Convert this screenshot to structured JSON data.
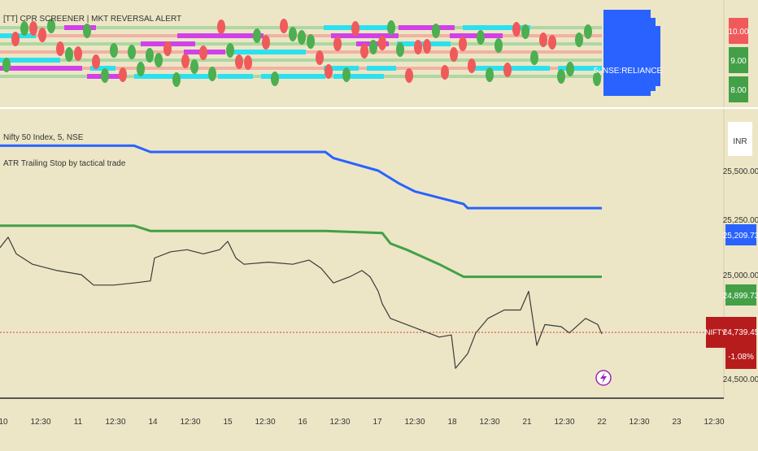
{
  "upper_pane": {
    "indicator_title": "[TT] CPR SCREENER | MKT REVERSAL ALERT",
    "badge_label": "5: NSE:RELIANCE",
    "axis_labels": [
      "10.00",
      "9.00",
      "8.00"
    ],
    "colors": {
      "red": "#f05a5a",
      "green": "#4caf50",
      "cyan": "#2de0ef",
      "magenta": "#d041e8",
      "badge": "#2962ff"
    }
  },
  "main_pane": {
    "symbol_title": "Nifty 50 Index, 5, NSE",
    "indicator_title": "ATR Trailing Stop by tactical trade",
    "currency_label": "INR",
    "price_labels": [
      "25,500.00",
      "25,000.00",
      "24,500.00"
    ],
    "partial_label": "25,250.00",
    "blue_tag": "25,209.73",
    "green_tag": "24,899.73",
    "symbol_tag": "NIFTY",
    "price_tag": "24,739.45",
    "change_tag": "-1.08%",
    "flash_icon": "lightning-bolt-icon",
    "colors": {
      "blue": "#2962ff",
      "green": "#43a047",
      "price": "#3a3a3a",
      "tag_red": "#b71c1c"
    }
  },
  "time_axis": {
    "labels": [
      "10",
      "12:30",
      "11",
      "12:30",
      "14",
      "12:30",
      "15",
      "12:30",
      "16",
      "12:30",
      "17",
      "12:30",
      "18",
      "12:30",
      "21",
      "12:30",
      "22",
      "12:30",
      "23",
      "12:30"
    ]
  },
  "chart_data": {
    "type": "line",
    "title": "Nifty 50 Index, 5, NSE",
    "x": [
      "10",
      "11",
      "14",
      "15",
      "16",
      "17",
      "18",
      "21",
      "22"
    ],
    "ylim": [
      24400,
      25700
    ],
    "series": [
      {
        "name": "ATR Trailing Stop by tactical trade",
        "color": "#2962ff",
        "points": [
          [
            0,
            25620
          ],
          [
            165,
            25620
          ],
          [
            185,
            25590
          ],
          [
            400,
            25590
          ],
          [
            410,
            25560
          ],
          [
            465,
            25500
          ],
          [
            490,
            25440
          ],
          [
            510,
            25400
          ],
          [
            540,
            25370
          ],
          [
            570,
            25340
          ],
          [
            575,
            25320
          ],
          [
            740,
            25320
          ]
        ]
      },
      {
        "name": "ATR Trailing Stop by tactical trade",
        "color": "#43a047",
        "points": [
          [
            0,
            25235
          ],
          [
            165,
            25235
          ],
          [
            185,
            25210
          ],
          [
            400,
            25210
          ],
          [
            470,
            25200
          ],
          [
            480,
            25150
          ],
          [
            500,
            25120
          ],
          [
            540,
            25050
          ],
          [
            570,
            24990
          ],
          [
            740,
            24990
          ]
        ]
      },
      {
        "name": "NIFTY",
        "color": "#3a3a3a",
        "points": [
          [
            0,
            25130
          ],
          [
            10,
            25180
          ],
          [
            20,
            25100
          ],
          [
            40,
            25050
          ],
          [
            70,
            25020
          ],
          [
            100,
            25000
          ],
          [
            115,
            24950
          ],
          [
            140,
            24950
          ],
          [
            165,
            24960
          ],
          [
            185,
            24970
          ],
          [
            190,
            25080
          ],
          [
            210,
            25110
          ],
          [
            230,
            25120
          ],
          [
            250,
            25100
          ],
          [
            270,
            25120
          ],
          [
            280,
            25160
          ],
          [
            290,
            25080
          ],
          [
            300,
            25050
          ],
          [
            330,
            25060
          ],
          [
            360,
            25050
          ],
          [
            380,
            25070
          ],
          [
            395,
            25030
          ],
          [
            410,
            24960
          ],
          [
            430,
            24990
          ],
          [
            445,
            25020
          ],
          [
            455,
            24990
          ],
          [
            465,
            24920
          ],
          [
            470,
            24860
          ],
          [
            480,
            24790
          ],
          [
            500,
            24760
          ],
          [
            520,
            24730
          ],
          [
            540,
            24700
          ],
          [
            555,
            24710
          ],
          [
            560,
            24550
          ],
          [
            575,
            24620
          ],
          [
            585,
            24720
          ],
          [
            600,
            24790
          ],
          [
            620,
            24830
          ],
          [
            640,
            24830
          ],
          [
            650,
            24920
          ],
          [
            655,
            24790
          ],
          [
            660,
            24660
          ],
          [
            670,
            24760
          ],
          [
            690,
            24750
          ],
          [
            700,
            24720
          ],
          [
            720,
            24790
          ],
          [
            735,
            24760
          ],
          [
            740,
            24715
          ]
        ]
      }
    ]
  }
}
